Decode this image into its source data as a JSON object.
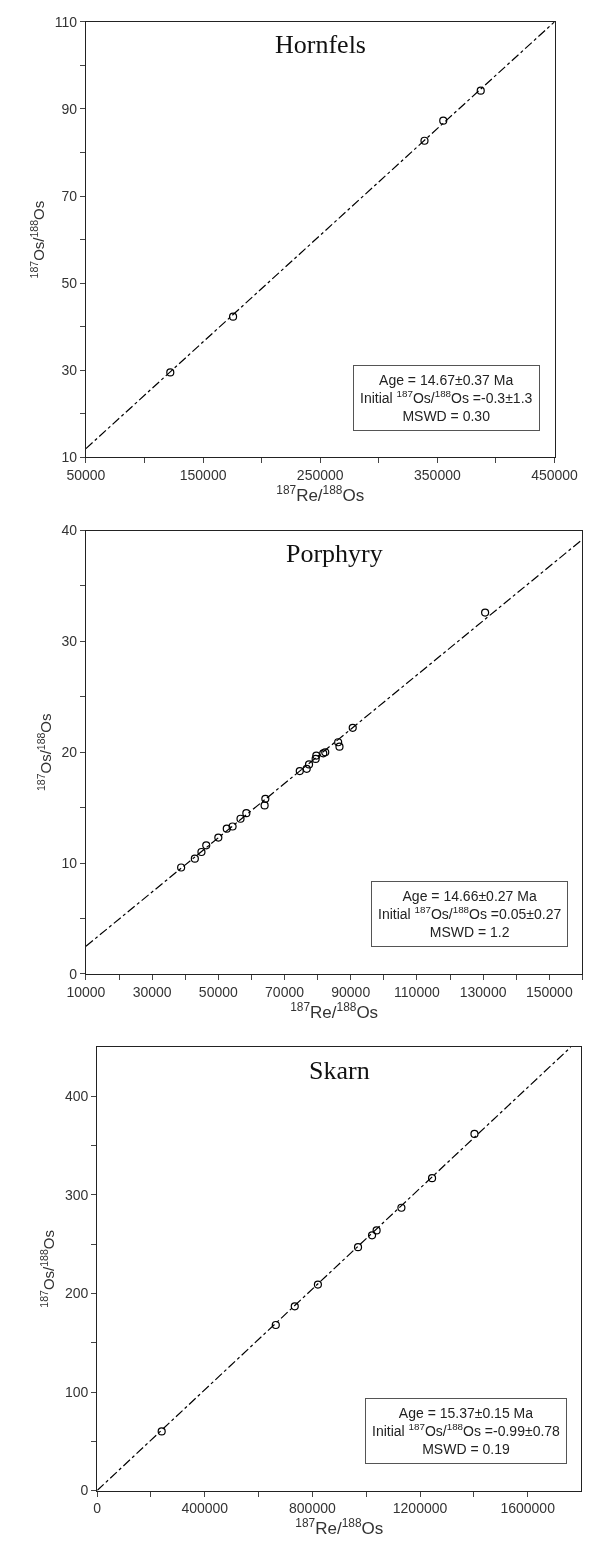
{
  "chart_data": [
    {
      "type": "scatter",
      "title": "Hornfels",
      "xlabel": "$^{187}$Re/$^{188}$Os",
      "ylabel": "$^{187}$Os/$^{188}$Os",
      "annotations": [
        "Age = 14.67±0.37 Ma",
        "Initial $^{187}$Os/$^{188}$Os =-0.3±1.3",
        "MSWD = 0.30"
      ],
      "x": [
        122000,
        175600,
        339000,
        355000,
        387000
      ],
      "series": [
        {
          "color": "#000000",
          "marker": "circle",
          "values": [
            29.5,
            42.3,
            82.7,
            87.3,
            94.2
          ]
        },
        {
          "type": "line",
          "color": "#000000",
          "line_style": "dashed",
          "marker": "none",
          "x": [
            50000,
            450000
          ],
          "values": [
            12,
            110
          ]
        }
      ],
      "xlim": [
        50000,
        450000
      ],
      "xticks": [
        50000,
        {
          "value": 100000,
          "label": null
        },
        150000,
        {
          "value": 200000,
          "label": null
        },
        250000,
        {
          "value": 300000,
          "label": null
        },
        350000,
        {
          "value": 400000,
          "label": null
        },
        450000
      ],
      "ylim": [
        10,
        110
      ],
      "yticks": [
        10,
        {
          "value": 20,
          "label": null
        },
        30,
        {
          "value": 40,
          "label": null
        },
        50,
        {
          "value": 60,
          "label": null
        },
        70,
        {
          "value": 80,
          "label": null
        },
        90,
        {
          "value": 100,
          "label": null
        },
        110
      ]
    },
    {
      "type": "scatter",
      "title": "Porphyry",
      "xlabel": "$^{187}$Re/$^{188}$Os",
      "ylabel": "$^{187}$Os/$^{188}$Os",
      "annotations": [
        "Age = 14.66±0.27 Ma",
        "Initial $^{187}$Os/$^{188}$Os =0.05±0.27",
        "MSWD = 1.2"
      ],
      "x": [
        38760,
        42900,
        44900,
        46350,
        50000,
        52550,
        54300,
        56700,
        58460,
        63980,
        64200,
        74600,
        76700,
        77400,
        79400,
        79600,
        81700,
        82300,
        86200,
        86600,
        90600,
        130600
      ],
      "series": [
        {
          "color": "#000000",
          "marker": "circle",
          "values": [
            9.6,
            10.4,
            11.0,
            11.6,
            12.3,
            13.1,
            13.3,
            14.0,
            14.5,
            15.2,
            15.8,
            18.3,
            18.5,
            18.9,
            19.4,
            19.7,
            19.9,
            20.0,
            20.9,
            20.5,
            22.2,
            32.6
          ]
        },
        {
          "type": "line",
          "color": "#000000",
          "line_style": "dashed",
          "marker": "none",
          "x": [
            10000,
            160000
          ],
          "values": [
            2.5,
            39.2
          ]
        }
      ],
      "xlim": [
        10000,
        160000
      ],
      "xticks": [
        10000,
        {
          "value": 20000,
          "label": null
        },
        30000,
        {
          "value": 40000,
          "label": null
        },
        50000,
        {
          "value": 60000,
          "label": null
        },
        70000,
        {
          "value": 80000,
          "label": null
        },
        90000,
        {
          "value": 100000,
          "label": null
        },
        110000,
        {
          "value": 120000,
          "label": null
        },
        130000,
        {
          "value": 140000,
          "label": null
        },
        150000,
        {
          "value": 160000,
          "label": null
        }
      ],
      "ylim": [
        0,
        40
      ],
      "yticks": [
        0,
        {
          "value": 5,
          "label": null
        },
        10,
        {
          "value": 15,
          "label": null
        },
        20,
        {
          "value": 25,
          "label": null
        },
        30,
        {
          "value": 35,
          "label": null
        },
        40
      ]
    },
    {
      "type": "scatter",
      "title": "Skarn",
      "xlabel": "$^{187}$Re/$^{188}$Os",
      "ylabel": "$^{187}$Os/$^{188}$Os",
      "annotations": [
        "Age = 15.37±0.15 Ma",
        "Initial $^{187}$Os/$^{188}$Os =-0.99±0.78",
        "MSWD = 0.19"
      ],
      "x": [
        240000,
        664000,
        734500,
        820500,
        969600,
        1021700,
        1038700,
        1130800,
        1244700,
        1402300
      ],
      "series": [
        {
          "color": "#000000",
          "marker": "circle",
          "values": [
            60,
            168,
            187,
            209,
            247,
            259,
            264,
            287,
            317,
            362
          ]
        },
        {
          "type": "line",
          "color": "#000000",
          "line_style": "dashed",
          "marker": "none",
          "x": [
            0,
            1760000
          ],
          "values": [
            0,
            450
          ]
        }
      ],
      "xlim": [
        0,
        1800000
      ],
      "xticks": [
        0,
        {
          "value": 200000,
          "label": null
        },
        400000,
        {
          "value": 600000,
          "label": null
        },
        800000,
        {
          "value": 1000000,
          "label": null
        },
        1200000,
        {
          "value": 1400000,
          "label": null
        },
        1600000
      ],
      "ylim": [
        0,
        450
      ],
      "yticks": [
        0,
        {
          "value": 50,
          "label": null
        },
        100,
        {
          "value": 150,
          "label": null
        },
        200,
        {
          "value": 250,
          "label": null
        },
        300,
        {
          "value": 350,
          "label": null
        },
        400
      ]
    }
  ]
}
